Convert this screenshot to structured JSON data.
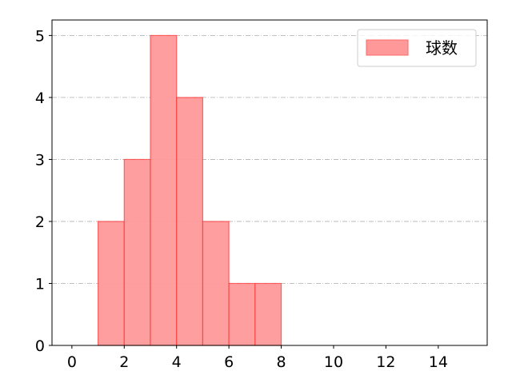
{
  "chart_data": {
    "type": "bar",
    "subtype": "histogram",
    "bins": [
      [
        1,
        2
      ],
      [
        2,
        3
      ],
      [
        3,
        4
      ],
      [
        4,
        5
      ],
      [
        5,
        6
      ],
      [
        6,
        7
      ],
      [
        7,
        8
      ]
    ],
    "values": [
      2,
      3,
      5,
      4,
      2,
      1,
      1
    ],
    "series": [
      {
        "name": "球数",
        "values": [
          2,
          3,
          5,
          4,
          2,
          1,
          1
        ]
      }
    ],
    "xlim": [
      -0.76,
      15.87
    ],
    "ylim": [
      0,
      5.25
    ],
    "xticks": [
      0,
      2,
      4,
      6,
      8,
      10,
      12,
      14
    ],
    "yticks": [
      0,
      1,
      2,
      3,
      4,
      5
    ],
    "grid": "y-dashdot",
    "legend": "top-right",
    "title": "",
    "xlabel": "",
    "ylabel": "",
    "colors": {
      "fill": "#ff9999",
      "edge": "#ff3333",
      "grid": "#b0b0b0"
    }
  }
}
